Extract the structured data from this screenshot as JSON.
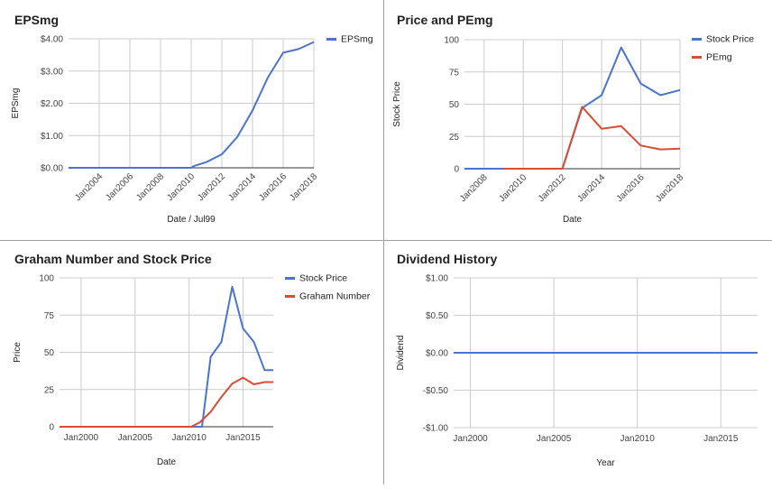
{
  "colors": {
    "blue": "#4a74cf",
    "red": "#dd4b32",
    "grid": "#cccccc",
    "axis": "#333333"
  },
  "chart_data": [
    {
      "type": "line",
      "title": "EPSmg",
      "xlabel": "Date / Jul99",
      "ylabel": "EPSmg",
      "x_ticks": [
        "Jan2004",
        "Jan2006",
        "Jan2008",
        "Jan2010",
        "Jan2012",
        "Jan2014",
        "Jan2016",
        "Jan2018"
      ],
      "x_tick_values": [
        2004,
        2006,
        2008,
        2010,
        2012,
        2014,
        2016,
        2018
      ],
      "y_ticks": [
        "$0.00",
        "$1.00",
        "$2.00",
        "$3.00",
        "$4.00"
      ],
      "y_tick_values": [
        0,
        1,
        2,
        3,
        4
      ],
      "xlim": [
        2002,
        2018
      ],
      "ylim": [
        0,
        4
      ],
      "x_tick_rotate": true,
      "grid": true,
      "legend": "right",
      "series": [
        {
          "name": "EPSmg",
          "color": "#4a74cf",
          "x": [
            2002,
            2004,
            2006,
            2008,
            2010,
            2010.2,
            2011,
            2012,
            2013,
            2014,
            2015,
            2016,
            2017,
            2018
          ],
          "y": [
            0,
            0,
            0,
            0,
            0,
            0.06,
            0.18,
            0.42,
            0.95,
            1.78,
            2.8,
            3.57,
            3.68,
            3.9
          ]
        }
      ]
    },
    {
      "type": "line",
      "title": "Price and PEmg",
      "xlabel": "Date",
      "ylabel": "Stock Price",
      "x_ticks": [
        "Jan2008",
        "Jan2010",
        "Jan2012",
        "Jan2014",
        "Jan2016",
        "Jan2018"
      ],
      "x_tick_values": [
        2008,
        2010,
        2012,
        2014,
        2016,
        2018
      ],
      "y_ticks": [
        "0",
        "25",
        "50",
        "75",
        "100"
      ],
      "y_tick_values": [
        0,
        25,
        50,
        75,
        100
      ],
      "xlim": [
        2007,
        2018
      ],
      "ylim": [
        0,
        100
      ],
      "x_tick_rotate": true,
      "grid": true,
      "legend": "right",
      "series": [
        {
          "name": "Stock Price",
          "color": "#4a74cf",
          "x": [
            2007,
            2012,
            2013,
            2014,
            2015,
            2016,
            2017,
            2018
          ],
          "y": [
            0,
            0,
            47,
            57,
            94,
            66,
            57,
            61
          ]
        },
        {
          "name": "PEmg",
          "color": "#dd4b32",
          "x": [
            2009,
            2012,
            2013,
            2014,
            2015,
            2016,
            2017,
            2018
          ],
          "y": [
            0,
            0,
            48,
            31,
            33,
            18,
            15,
            15.5
          ]
        }
      ]
    },
    {
      "type": "line",
      "title": "Graham Number and Stock Price",
      "xlabel": "Date",
      "ylabel": "Price",
      "x_ticks": [
        "Jan2000",
        "Jan2005",
        "Jan2010",
        "Jan2015"
      ],
      "x_tick_values": [
        2000,
        2005,
        2010,
        2015
      ],
      "y_ticks": [
        "0",
        "25",
        "50",
        "75",
        "100"
      ],
      "y_tick_values": [
        0,
        25,
        50,
        75,
        100
      ],
      "xlim": [
        1998,
        2017.8
      ],
      "ylim": [
        0,
        100
      ],
      "x_tick_rotate": false,
      "grid": true,
      "legend": "right",
      "series": [
        {
          "name": "Stock Price",
          "color": "#4a74cf",
          "x": [
            1998,
            2010.2,
            2011.2,
            2012,
            2013,
            2014,
            2015,
            2016,
            2017,
            2017.8
          ],
          "y": [
            0,
            0,
            0,
            47,
            57,
            94,
            66,
            57,
            38,
            38
          ]
        },
        {
          "name": "Graham Number",
          "color": "#dd4b32",
          "x": [
            1998,
            2010.2,
            2011,
            2012,
            2013,
            2014,
            2015,
            2016,
            2017,
            2017.8
          ],
          "y": [
            0,
            0,
            3,
            10,
            20,
            29,
            33,
            28.5,
            30,
            30
          ]
        }
      ]
    },
    {
      "type": "line",
      "title": "Dividend History",
      "xlabel": "Year",
      "ylabel": "Dividend",
      "x_ticks": [
        "Jan2000",
        "Jan2005",
        "Jan2010",
        "Jan2015"
      ],
      "x_tick_values": [
        2000,
        2005,
        2010,
        2015
      ],
      "y_ticks": [
        "-$1.00",
        "-$0.50",
        "$0.00",
        "$0.50",
        "$1.00"
      ],
      "y_tick_values": [
        -1,
        -0.5,
        0,
        0.5,
        1
      ],
      "xlim": [
        1999,
        2017.2
      ],
      "ylim": [
        -1,
        1
      ],
      "x_tick_rotate": false,
      "grid": true,
      "legend": "none",
      "series": [
        {
          "color": "#4a74cf",
          "x": [
            1999,
            2017.2
          ],
          "y": [
            0,
            0
          ]
        }
      ]
    }
  ]
}
